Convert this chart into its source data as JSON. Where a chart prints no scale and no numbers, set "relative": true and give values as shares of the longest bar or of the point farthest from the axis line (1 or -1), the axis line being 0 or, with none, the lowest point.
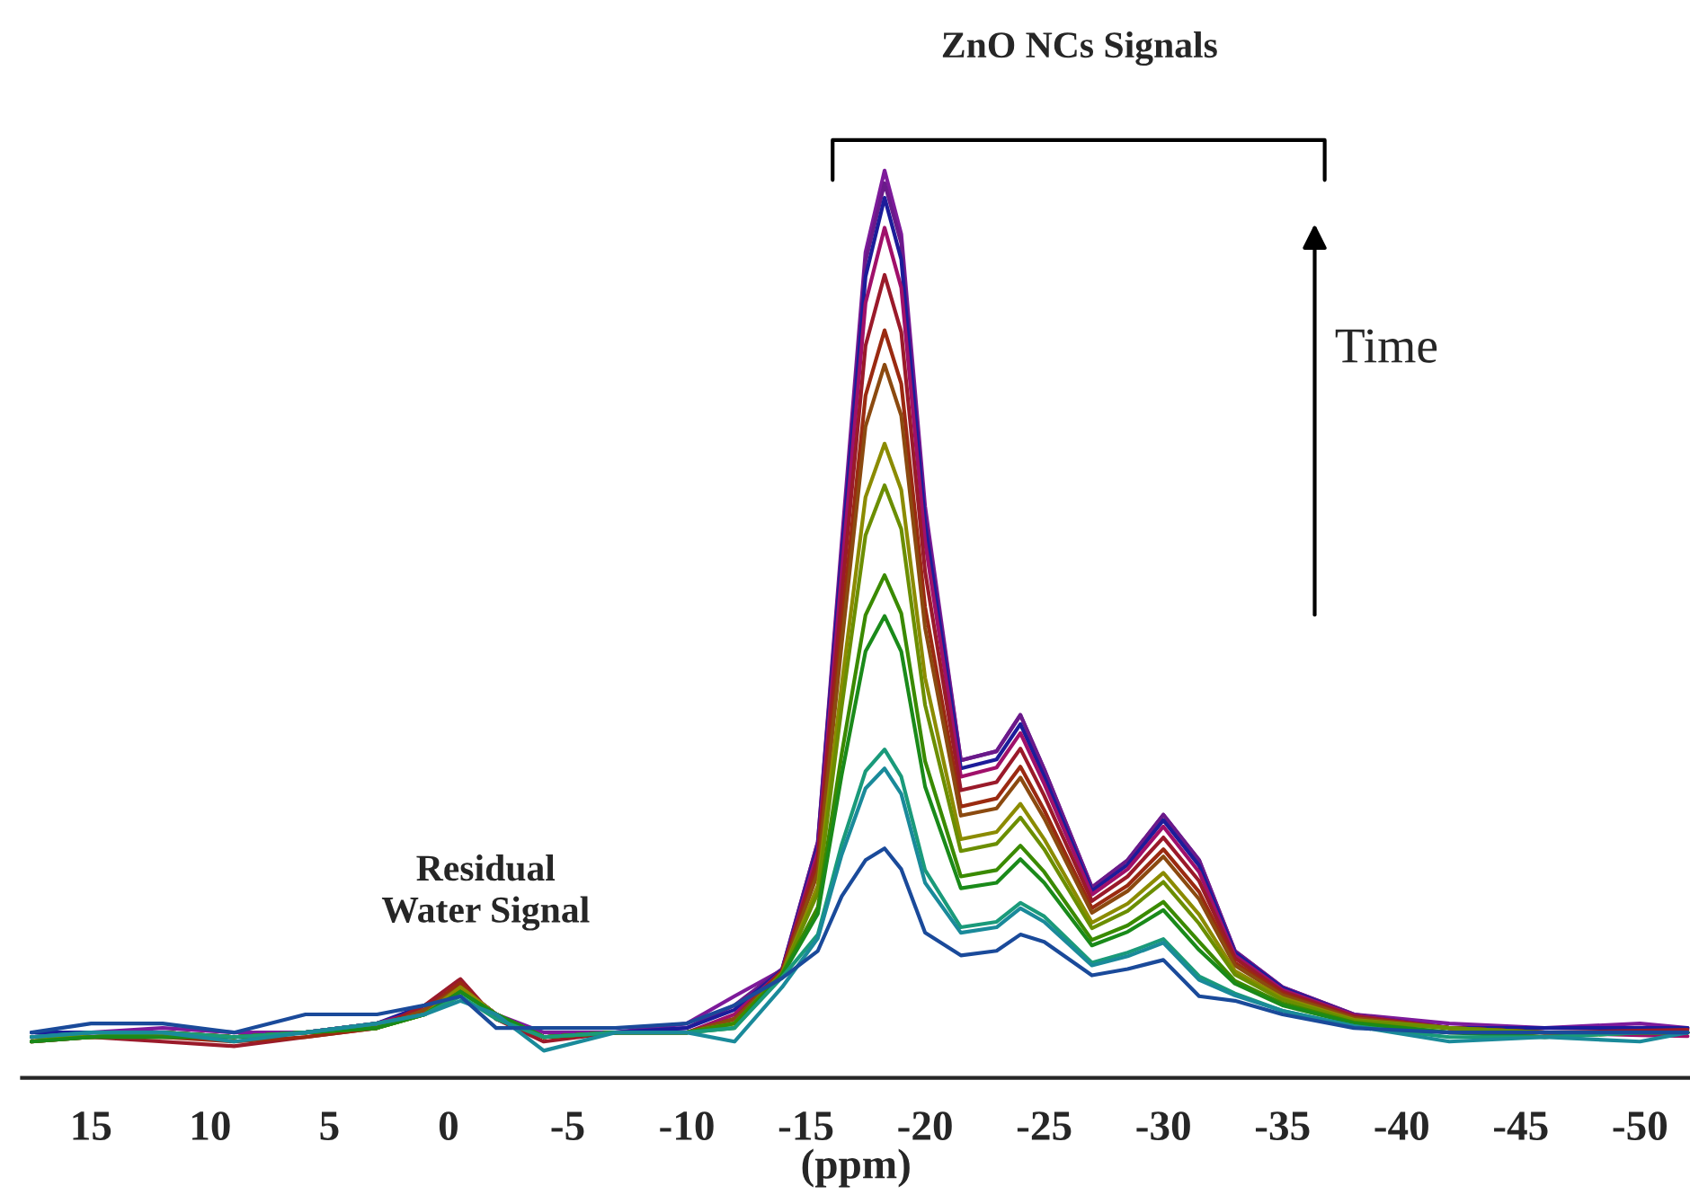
{
  "chart_data": {
    "type": "line",
    "relative": true,
    "xlabel": "(ppm)",
    "x": [
      17.5,
      15,
      12,
      9,
      6,
      3,
      1,
      -0.5,
      -2,
      -4,
      -7,
      -10,
      -12,
      -14,
      -15.5,
      -16.5,
      -17.5,
      -18.3,
      -19,
      -20,
      -21.5,
      -23,
      -24,
      -25,
      -27,
      -28.5,
      -30,
      -31.5,
      -33,
      -35,
      -38,
      -42,
      -46,
      -50,
      -52
    ],
    "xlim": [
      17.9,
      -52.1
    ],
    "xticks": [
      15,
      10,
      5,
      0,
      -5,
      -10,
      -15,
      -20,
      -25,
      -30,
      -35,
      -40,
      -45,
      -50
    ],
    "grid": false,
    "legend": false,
    "line_style": "solid",
    "marker": "none",
    "series": [
      {
        "color": "#7d1a9a",
        "values": [
          0.045,
          0.05,
          0.055,
          0.05,
          0.05,
          0.06,
          0.075,
          0.1,
          0.07,
          0.05,
          0.05,
          0.06,
          0.09,
          0.119,
          0.26,
          0.59,
          0.91,
          1.0,
          0.93,
          0.63,
          0.35,
          0.36,
          0.4,
          0.34,
          0.21,
          0.24,
          0.29,
          0.24,
          0.14,
          0.1,
          0.07,
          0.06,
          0.055,
          0.06,
          0.055
        ]
      },
      {
        "color": "#6a1a8a",
        "values": [
          0.045,
          0.05,
          0.05,
          0.045,
          0.05,
          0.06,
          0.075,
          0.1,
          0.07,
          0.045,
          0.05,
          0.055,
          0.08,
          0.12,
          0.26,
          0.58,
          0.9,
          0.986,
          0.92,
          0.62,
          0.35,
          0.36,
          0.4,
          0.34,
          0.21,
          0.24,
          0.29,
          0.24,
          0.14,
          0.1,
          0.07,
          0.055,
          0.05,
          0.05,
          0.05
        ]
      },
      {
        "color": "#1c1c9a",
        "values": [
          0.05,
          0.05,
          0.05,
          0.045,
          0.05,
          0.06,
          0.08,
          0.1,
          0.07,
          0.045,
          0.05,
          0.055,
          0.075,
          0.119,
          0.255,
          0.574,
          0.883,
          0.97,
          0.902,
          0.611,
          0.341,
          0.351,
          0.39,
          0.332,
          0.206,
          0.235,
          0.284,
          0.234,
          0.138,
          0.099,
          0.069,
          0.055,
          0.055,
          0.055,
          0.055
        ]
      },
      {
        "color": "#a0106a",
        "values": [
          0.045,
          0.045,
          0.05,
          0.045,
          0.05,
          0.06,
          0.075,
          0.1,
          0.065,
          0.045,
          0.05,
          0.05,
          0.07,
          0.118,
          0.25,
          0.557,
          0.854,
          0.937,
          0.871,
          0.591,
          0.332,
          0.342,
          0.38,
          0.324,
          0.202,
          0.23,
          0.277,
          0.227,
          0.135,
          0.097,
          0.069,
          0.055,
          0.05,
          0.047,
          0.046
        ]
      },
      {
        "color": "#9a1a2a",
        "values": [
          0.04,
          0.045,
          0.04,
          0.035,
          0.045,
          0.055,
          0.08,
          0.109,
          0.065,
          0.04,
          0.05,
          0.05,
          0.065,
          0.118,
          0.242,
          0.53,
          0.807,
          0.885,
          0.822,
          0.558,
          0.317,
          0.326,
          0.363,
          0.311,
          0.195,
          0.222,
          0.265,
          0.217,
          0.132,
          0.095,
          0.068,
          0.055,
          0.05,
          0.052,
          0.053
        ]
      },
      {
        "color": "#9a2a10",
        "values": [
          0.04,
          0.045,
          0.045,
          0.04,
          0.045,
          0.055,
          0.075,
          0.105,
          0.065,
          0.045,
          0.05,
          0.05,
          0.065,
          0.117,
          0.232,
          0.498,
          0.752,
          0.824,
          0.765,
          0.519,
          0.299,
          0.308,
          0.343,
          0.295,
          0.187,
          0.212,
          0.252,
          0.205,
          0.127,
          0.093,
          0.066,
          0.055,
          0.05,
          0.05,
          0.05
        ]
      },
      {
        "color": "#8b4a10",
        "values": [
          0.045,
          0.045,
          0.045,
          0.045,
          0.05,
          0.055,
          0.075,
          0.1,
          0.07,
          0.045,
          0.05,
          0.05,
          0.065,
          0.116,
          0.226,
          0.478,
          0.718,
          0.786,
          0.73,
          0.496,
          0.289,
          0.297,
          0.331,
          0.286,
          0.182,
          0.206,
          0.244,
          0.197,
          0.124,
          0.091,
          0.066,
          0.055,
          0.05,
          0.05,
          0.05
        ]
      },
      {
        "color": "#8b8b00",
        "values": [
          0.045,
          0.045,
          0.05,
          0.045,
          0.05,
          0.055,
          0.07,
          0.1,
          0.07,
          0.045,
          0.05,
          0.05,
          0.06,
          0.115,
          0.212,
          0.433,
          0.64,
          0.699,
          0.648,
          0.441,
          0.263,
          0.271,
          0.302,
          0.263,
          0.171,
          0.192,
          0.226,
          0.18,
          0.118,
          0.088,
          0.064,
          0.055,
          0.045,
          0.05,
          0.05
        ]
      },
      {
        "color": "#6b8e00",
        "values": [
          0.045,
          0.045,
          0.05,
          0.045,
          0.05,
          0.055,
          0.07,
          0.095,
          0.07,
          0.045,
          0.05,
          0.05,
          0.06,
          0.115,
          0.204,
          0.409,
          0.598,
          0.653,
          0.605,
          0.411,
          0.25,
          0.258,
          0.287,
          0.252,
          0.165,
          0.184,
          0.216,
          0.17,
          0.114,
          0.086,
          0.063,
          0.055,
          0.05,
          0.05,
          0.05
        ]
      },
      {
        "color": "#3a8a00",
        "values": [
          0.04,
          0.045,
          0.05,
          0.045,
          0.05,
          0.055,
          0.07,
          0.095,
          0.07,
          0.045,
          0.05,
          0.05,
          0.06,
          0.114,
          0.188,
          0.357,
          0.51,
          0.554,
          0.512,
          0.349,
          0.222,
          0.229,
          0.256,
          0.227,
          0.152,
          0.168,
          0.194,
          0.15,
          0.107,
          0.082,
          0.061,
          0.05,
          0.05,
          0.05,
          0.05
        ]
      },
      {
        "color": "#1a8a1a",
        "values": [
          0.04,
          0.045,
          0.045,
          0.045,
          0.05,
          0.055,
          0.07,
          0.095,
          0.07,
          0.045,
          0.05,
          0.05,
          0.055,
          0.113,
          0.181,
          0.334,
          0.47,
          0.509,
          0.47,
          0.321,
          0.209,
          0.215,
          0.241,
          0.215,
          0.146,
          0.161,
          0.185,
          0.141,
          0.104,
          0.08,
          0.06,
          0.05,
          0.045,
          0.05,
          0.05
        ]
      },
      {
        "color": "#1a9a7a",
        "values": [
          0.045,
          0.05,
          0.05,
          0.045,
          0.05,
          0.06,
          0.07,
          0.09,
          0.065,
          0.045,
          0.05,
          0.05,
          0.055,
          0.111,
          0.158,
          0.257,
          0.338,
          0.362,
          0.332,
          0.229,
          0.166,
          0.172,
          0.193,
          0.178,
          0.127,
          0.138,
          0.153,
          0.112,
          0.093,
          0.074,
          0.057,
          0.045,
          0.045,
          0.05,
          0.05
        ]
      },
      {
        "color": "#1a8a9a",
        "values": [
          0.045,
          0.05,
          0.05,
          0.04,
          0.05,
          0.06,
          0.07,
          0.085,
          0.07,
          0.03,
          0.05,
          0.05,
          0.04,
          0.1,
          0.154,
          0.246,
          0.319,
          0.341,
          0.313,
          0.215,
          0.16,
          0.166,
          0.187,
          0.172,
          0.124,
          0.134,
          0.149,
          0.108,
          0.091,
          0.074,
          0.057,
          0.04,
          0.045,
          0.04,
          0.05
        ]
      },
      {
        "color": "#1a4a9a",
        "values": [
          0.05,
          0.06,
          0.06,
          0.05,
          0.07,
          0.07,
          0.08,
          0.09,
          0.055,
          0.055,
          0.055,
          0.06,
          0.08,
          0.11,
          0.14,
          0.2,
          0.24,
          0.253,
          0.23,
          0.16,
          0.135,
          0.14,
          0.158,
          0.15,
          0.113,
          0.12,
          0.13,
          0.09,
          0.085,
          0.07,
          0.055,
          0.05,
          0.05,
          0.05,
          0.05
        ]
      }
    ],
    "annotations": [
      "ZnO NCs Signals",
      "Residual\nWater Signal",
      "Time"
    ]
  }
}
